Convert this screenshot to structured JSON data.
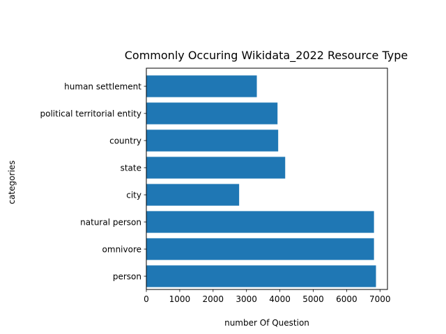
{
  "chart_data": {
    "type": "bar",
    "orientation": "horizontal",
    "title": "Commonly Occuring Wikidata_2022 Resource Type",
    "xlabel": "number Of Question",
    "ylabel": "categories",
    "categories": [
      "person",
      "omnivore",
      "natural person",
      "city",
      "state",
      "country",
      "political territorial entity",
      "human settlement"
    ],
    "values": [
      6880,
      6820,
      6820,
      2780,
      4160,
      3950,
      3930,
      3310
    ],
    "xticks": [
      0,
      1000,
      2000,
      3000,
      4000,
      5000,
      6000,
      7000
    ],
    "xlim": [
      0,
      7224
    ],
    "grid": false,
    "legend": "none",
    "bar_color": "#1f77b4"
  }
}
